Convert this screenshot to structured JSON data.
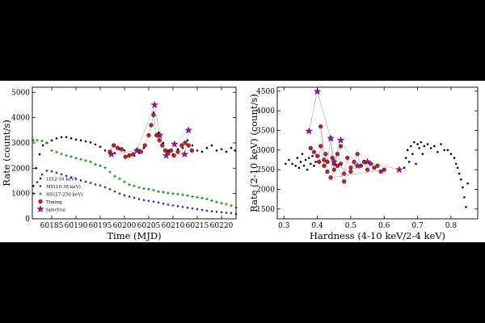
{
  "chart_data": [
    {
      "type": "scatter",
      "xlabel": "Time (MJD)",
      "ylabel": "Rate (count/s)",
      "xlim": [
        60181,
        60223
      ],
      "ylim": [
        0,
        5200
      ],
      "xticks": [
        60185,
        60190,
        60195,
        60200,
        60205,
        60210,
        60215,
        60220
      ],
      "yticks": [
        0,
        1000,
        2000,
        3000,
        4000,
        5000
      ],
      "legend_position": "lower-left",
      "series": [
        {
          "name": "LE(2-10 keV)",
          "color": "#000000",
          "marker": "dot",
          "x": [
            60181.2,
            60181.8,
            60182.5,
            60183.2,
            60184,
            60185,
            60186,
            60187,
            60188,
            60189,
            60190,
            60191,
            60192,
            60193,
            60194,
            60195,
            60196,
            60197,
            60198,
            60199,
            60200,
            60201,
            60202,
            60203,
            60204,
            60205,
            60206,
            60207,
            60208,
            60209,
            60210,
            60211,
            60212,
            60213,
            60214,
            60215,
            60216,
            60217,
            60218,
            60219,
            60220,
            60221,
            60222,
            60222.8
          ],
          "y": [
            1300,
            2000,
            2550,
            2900,
            3000,
            3100,
            3180,
            3230,
            3230,
            3180,
            3130,
            3100,
            3060,
            3020,
            2940,
            2850,
            2700,
            2560,
            2600,
            2750,
            2700,
            2550,
            2500,
            2600,
            2800,
            3300,
            4200,
            3400,
            3000,
            2700,
            2550,
            2750,
            2800,
            3100,
            2900,
            2700,
            2650,
            2800,
            2900,
            2700,
            2750,
            2650,
            2800,
            2700
          ]
        },
        {
          "name": "ME(10-35 keV)",
          "color": "#1f2fd8",
          "marker": "dot",
          "x": [
            60181.2,
            60182,
            60183,
            60184,
            60185,
            60186,
            60187,
            60188,
            60189,
            60190,
            60191,
            60192,
            60193,
            60194,
            60195,
            60196,
            60197,
            60198,
            60199,
            60200,
            60201,
            60202,
            60203,
            60204,
            60205,
            60206,
            60207,
            60208,
            60209,
            60210,
            60211,
            60212,
            60213,
            60214,
            60215,
            60216,
            60217,
            60218,
            60219,
            60220,
            60221,
            60222,
            60223
          ],
          "y": [
            1000,
            1450,
            1750,
            1900,
            1880,
            1820,
            1760,
            1700,
            1640,
            1580,
            1520,
            1470,
            1420,
            1360,
            1320,
            1250,
            1170,
            1080,
            1000,
            930,
            880,
            830,
            780,
            740,
            710,
            680,
            650,
            600,
            560,
            530,
            500,
            470,
            440,
            410,
            380,
            350,
            320,
            300,
            280,
            260,
            240,
            230,
            190
          ]
        },
        {
          "name": "HE(27-250 keV)",
          "color": "#1a8a1a",
          "marker": "plus",
          "x": [
            60181.2,
            60182,
            60183,
            60184,
            60185,
            60186,
            60187,
            60188,
            60189,
            60190,
            60191,
            60192,
            60193,
            60194,
            60195,
            60196,
            60197,
            60198,
            60199,
            60200,
            60201,
            60202,
            60203,
            60204,
            60205,
            60206,
            60207,
            60208,
            60209,
            60210,
            60211,
            60212,
            60213,
            60214,
            60215,
            60216,
            60217,
            60218,
            60219,
            60220,
            60221,
            60222,
            60223
          ],
          "y": [
            3100,
            3100,
            3080,
            3000,
            2700,
            2640,
            2560,
            2500,
            2460,
            2400,
            2350,
            2300,
            2250,
            2150,
            2100,
            2020,
            1850,
            1680,
            1580,
            1460,
            1350,
            1300,
            1240,
            1200,
            1170,
            1130,
            1080,
            1050,
            1020,
            1000,
            980,
            950,
            920,
            880,
            850,
            820,
            780,
            720,
            660,
            620,
            580,
            520,
            450
          ]
        },
        {
          "name": "Timing",
          "color": "#c0202a",
          "marker": "circle",
          "x": [
            60197,
            60197.8,
            60198.6,
            60199.4,
            60200.2,
            60201,
            60201.8,
            60202.6,
            60203.4,
            60204.2,
            60205,
            60205.5,
            60206,
            60206.6,
            60207.2,
            60207.8,
            60208.4,
            60209,
            60209.6,
            60210.2,
            60211,
            60211.8,
            60212.5,
            60213.2,
            60213.9
          ],
          "y": [
            2650,
            2900,
            2800,
            2750,
            2450,
            2500,
            2550,
            2700,
            2650,
            2900,
            3300,
            3700,
            4100,
            3300,
            3100,
            2900,
            2700,
            2600,
            2700,
            2500,
            2650,
            2900,
            3000,
            2900,
            2700
          ]
        },
        {
          "name": "Spectral",
          "color": "#8e1a8e",
          "marker": "star",
          "x": [
            60197.3,
            60202.6,
            60206.2,
            60207.3,
            60208.6,
            60212.4,
            60213.2,
            60210.3
          ],
          "y": [
            2550,
            2700,
            4500,
            3300,
            2500,
            2550,
            3500,
            2950
          ]
        }
      ]
    },
    {
      "type": "scatter",
      "xlabel": "Hardness (4-10 keV/2-4 keV)",
      "ylabel": "Rate (2-10 keV) (count/s)",
      "xlim": [
        0.28,
        0.88
      ],
      "ylim": [
        1250,
        4600
      ],
      "xticks": [
        0.3,
        0.4,
        0.5,
        0.6,
        0.7,
        0.8
      ],
      "yticks": [
        1500,
        2000,
        2500,
        3000,
        3500,
        4000,
        4500
      ],
      "series": [
        {
          "name": "LE",
          "color": "#000000",
          "marker": "dot",
          "x": [
            0.305,
            0.315,
            0.325,
            0.335,
            0.34,
            0.345,
            0.35,
            0.355,
            0.36,
            0.365,
            0.37,
            0.375,
            0.38,
            0.385,
            0.39,
            0.395,
            0.66,
            0.665,
            0.67,
            0.675,
            0.68,
            0.685,
            0.69,
            0.695,
            0.7,
            0.705,
            0.71,
            0.715,
            0.72,
            0.73,
            0.74,
            0.75,
            0.76,
            0.77,
            0.78,
            0.79,
            0.8,
            0.81,
            0.815,
            0.82,
            0.825,
            0.83,
            0.835,
            0.84,
            0.845,
            0.85
          ],
          "y": [
            2650,
            2750,
            2650,
            2600,
            2800,
            2550,
            2700,
            2900,
            2600,
            2750,
            2500,
            2800,
            2650,
            2850,
            2600,
            2700,
            2550,
            2800,
            3000,
            2700,
            3100,
            2900,
            3200,
            2650,
            3150,
            3050,
            3200,
            2900,
            3100,
            3150,
            3050,
            3100,
            2950,
            3150,
            3000,
            3000,
            2900,
            2800,
            2650,
            2550,
            2400,
            2250,
            2050,
            1800,
            1550,
            2150
          ]
        },
        {
          "name": "Timing",
          "color": "#c0202a",
          "marker": "circle",
          "x": [
            0.38,
            0.39,
            0.4,
            0.405,
            0.41,
            0.42,
            0.425,
            0.43,
            0.44,
            0.445,
            0.45,
            0.46,
            0.47,
            0.48,
            0.49,
            0.5,
            0.51,
            0.52,
            0.53,
            0.54,
            0.55,
            0.56,
            0.57,
            0.58,
            0.59,
            0.6,
            0.44,
            0.46,
            0.48,
            0.5,
            0.42,
            0.41,
            0.43,
            0.45,
            0.47
          ],
          "y": [
            3050,
            2950,
            2850,
            2700,
            3100,
            2600,
            2900,
            2700,
            3300,
            2800,
            2500,
            2900,
            2650,
            2400,
            2800,
            2550,
            2700,
            2900,
            2600,
            2700,
            2500,
            2650,
            2550,
            2600,
            2450,
            2500,
            2300,
            2600,
            2200,
            2450,
            2750,
            3600,
            2450,
            2650,
            3100
          ]
        },
        {
          "name": "Spectral",
          "color": "#8e1a8e",
          "marker": "star",
          "x": [
            0.375,
            0.4,
            0.44,
            0.45,
            0.47,
            0.52,
            0.55,
            0.645
          ],
          "y": [
            3480,
            4490,
            3300,
            2700,
            3250,
            2600,
            2700,
            2500
          ]
        }
      ]
    }
  ]
}
